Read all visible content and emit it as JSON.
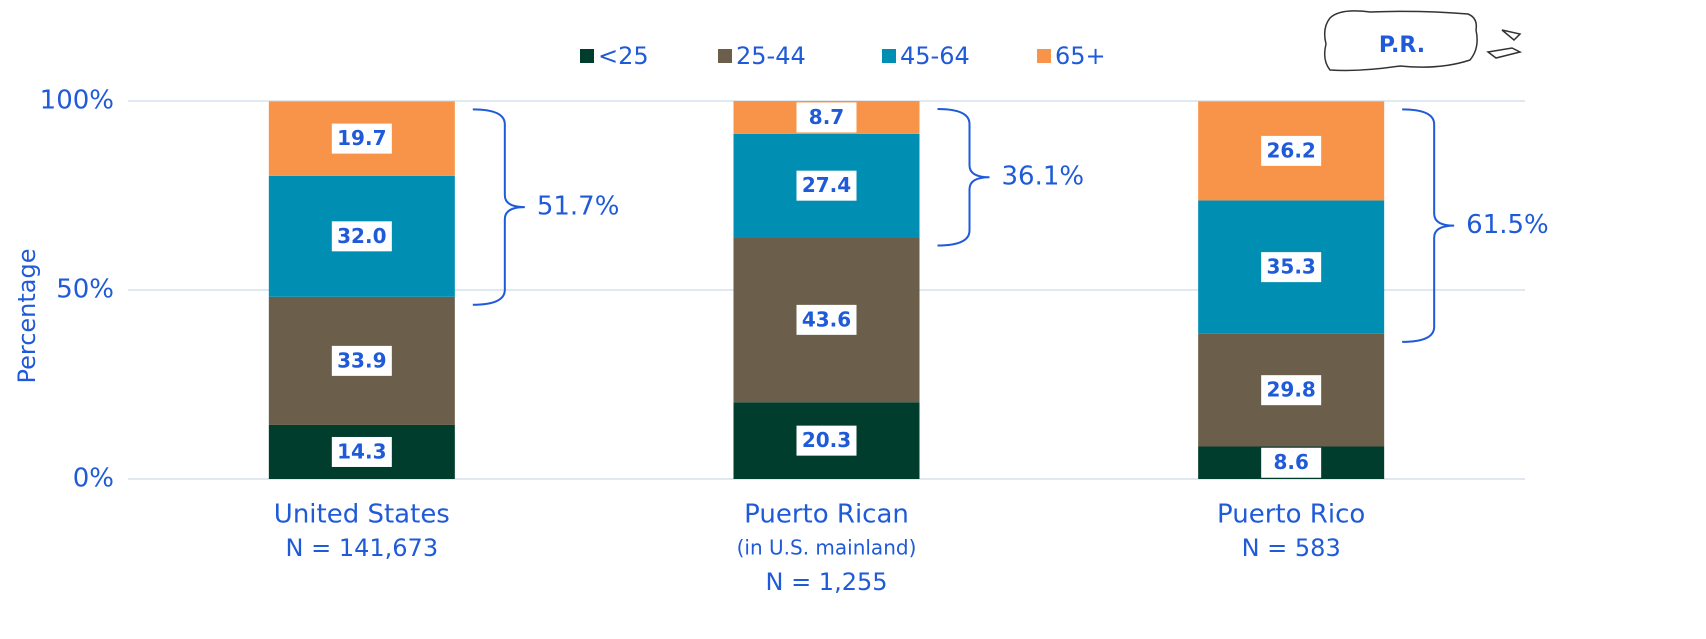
{
  "chart_data": {
    "type": "stacked_bar",
    "ylabel": "Percentage",
    "map_label": "P.R.",
    "categories": [
      "United States",
      "Puerto Rican",
      "Puerto Rico"
    ],
    "category_sublabels": [
      [
        "N = 141,673"
      ],
      [
        "(in U.S. mainland)",
        "N = 1,255"
      ],
      [
        "N = 583"
      ]
    ],
    "series": [
      {
        "name": "<25",
        "color": "#003d2c",
        "values": [
          14.3,
          20.3,
          8.6
        ],
        "value_labels": [
          "14.3",
          "20.3",
          "8.6"
        ]
      },
      {
        "name": "25-44",
        "color": "#6b5e4a",
        "values": [
          33.9,
          43.6,
          29.8
        ],
        "value_labels": [
          "33.9",
          "43.6",
          "29.8"
        ]
      },
      {
        "name": "45-64",
        "color": "#008fb3",
        "values": [
          32.0,
          27.4,
          35.3
        ],
        "value_labels": [
          "32.0",
          "27.4",
          "35.3"
        ]
      },
      {
        "name": "65+",
        "color": "#f7944a",
        "values": [
          19.7,
          8.7,
          26.2
        ],
        "value_labels": [
          "19.7",
          "8.7",
          "26.2"
        ]
      }
    ],
    "annotations": [
      {
        "value": 51.7,
        "label": "51.7%"
      },
      {
        "value": 36.1,
        "label": "36.1%"
      },
      {
        "value": 61.5,
        "label": "61.5%"
      }
    ],
    "ylim": [
      0,
      100
    ],
    "yticks": [
      {
        "value": 0,
        "label": "0%"
      },
      {
        "value": 50,
        "label": "50%"
      },
      {
        "value": 100,
        "label": "100%"
      }
    ],
    "grid": true
  }
}
